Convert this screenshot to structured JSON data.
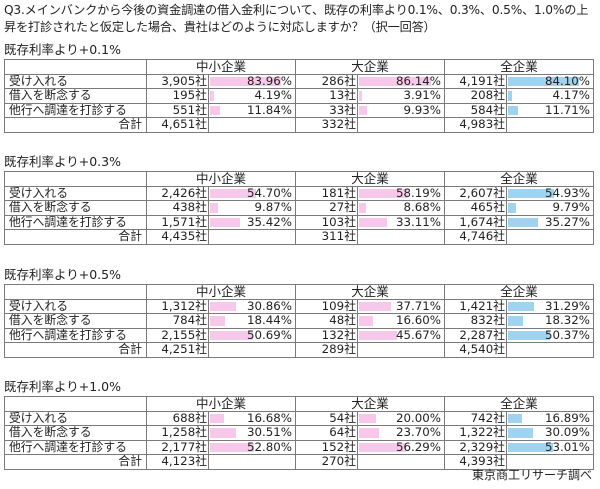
{
  "question": "Q3.メインバンクから今後の資金調達の借入金利について、既存の利率より0.1%、0.3%、0.5%、1.0%の上昇を打診されたと仮定した場合、貴社はどのように対応しますか？（択一回答）",
  "groups": [
    "中小企業",
    "大企業",
    "全企業"
  ],
  "total_label": "合計",
  "source": "東京商工リサーチ調べ",
  "colors": {
    "sme_bar": "#f7c8ea",
    "large_bar": "#f7c8ea",
    "all_bar": "#9fd3ef",
    "border": "#7a7a7a"
  },
  "blocks": [
    {
      "title": "既存利率より+0.1%",
      "rows": [
        {
          "label": "受け入れる",
          "sme": [
            "3,905社",
            "83.96%"
          ],
          "large": [
            "286社",
            "86.14%"
          ],
          "all": [
            "4,191社",
            "84.10%"
          ]
        },
        {
          "label": "借入を断念する",
          "sme": [
            "195社",
            "4.19%"
          ],
          "large": [
            "13社",
            "3.91%"
          ],
          "all": [
            "208社",
            "4.17%"
          ]
        },
        {
          "label": "他行へ調達を打診する",
          "sme": [
            "551社",
            "11.84%"
          ],
          "large": [
            "33社",
            "9.93%"
          ],
          "all": [
            "584社",
            "11.71%"
          ]
        }
      ],
      "totals": {
        "sme": "4,651社",
        "large": "332社",
        "all": "4,983社"
      }
    },
    {
      "title": "既存利率より+0.3%",
      "rows": [
        {
          "label": "受け入れる",
          "sme": [
            "2,426社",
            "54.70%"
          ],
          "large": [
            "181社",
            "58.19%"
          ],
          "all": [
            "2,607社",
            "54.93%"
          ]
        },
        {
          "label": "借入を断念する",
          "sme": [
            "438社",
            "9.87%"
          ],
          "large": [
            "27社",
            "8.68%"
          ],
          "all": [
            "465社",
            "9.79%"
          ]
        },
        {
          "label": "他行へ調達を打診する",
          "sme": [
            "1,571社",
            "35.42%"
          ],
          "large": [
            "103社",
            "33.11%"
          ],
          "all": [
            "1,674社",
            "35.27%"
          ]
        }
      ],
      "totals": {
        "sme": "4,435社",
        "large": "311社",
        "all": "4,746社"
      }
    },
    {
      "title": "既存利率より+0.5%",
      "rows": [
        {
          "label": "受け入れる",
          "sme": [
            "1,312社",
            "30.86%"
          ],
          "large": [
            "109社",
            "37.71%"
          ],
          "all": [
            "1,421社",
            "31.29%"
          ]
        },
        {
          "label": "借入を断念する",
          "sme": [
            "784社",
            "18.44%"
          ],
          "large": [
            "48社",
            "16.60%"
          ],
          "all": [
            "832社",
            "18.32%"
          ]
        },
        {
          "label": "他行へ調達を打診する",
          "sme": [
            "2,155社",
            "50.69%"
          ],
          "large": [
            "132社",
            "45.67%"
          ],
          "all": [
            "2,287社",
            "50.37%"
          ]
        }
      ],
      "totals": {
        "sme": "4,251社",
        "large": "289社",
        "all": "4,540社"
      }
    },
    {
      "title": "既存利率より+1.0%",
      "rows": [
        {
          "label": "受け入れる",
          "sme": [
            "688社",
            "16.68%"
          ],
          "large": [
            "54社",
            "20.00%"
          ],
          "all": [
            "742社",
            "16.89%"
          ]
        },
        {
          "label": "借入を断念する",
          "sme": [
            "1,258社",
            "30.51%"
          ],
          "large": [
            "64社",
            "23.70%"
          ],
          "all": [
            "1,322社",
            "30.09%"
          ]
        },
        {
          "label": "他行へ調達を打診する",
          "sme": [
            "2,177社",
            "52.80%"
          ],
          "large": [
            "152社",
            "56.29%"
          ],
          "all": [
            "2,329社",
            "53.01%"
          ]
        }
      ],
      "totals": {
        "sme": "4,123社",
        "large": "270社",
        "all": "4,393社"
      }
    }
  ]
}
